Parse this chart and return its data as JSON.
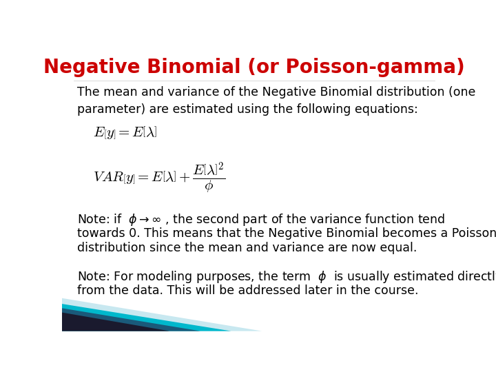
{
  "title": "Negative Binomial (or Poisson-gamma)",
  "title_color": "#CC0000",
  "title_fontsize": 20,
  "title_fontweight": "bold",
  "bg_color": "#FFFFFF",
  "body_text_1": "The mean and variance of the Negative Binomial distribution (one\nparameter) are estimated using the following equations:",
  "body_fontsize": 12.5,
  "eq1": "$E\\left[y\\right]= E\\left[\\lambda\\right]$",
  "eq2": "$VAR\\left[y\\right]= E\\left[\\lambda\\right]+\\dfrac{E\\left[\\lambda\\right]^2}{\\phi}$",
  "eq_fontsize": 15,
  "note1_line1": "Note: if  $\\phi \\rightarrow \\infty$ , the second part of the variance function tend",
  "note1_line2": "towards 0. This means that the Negative Binomial becomes a Poisson",
  "note1_line3": "distribution since the mean and variance are now equal.",
  "note2_line1": "Note: For modeling purposes, the term  $\\phi$  is usually estimated directly",
  "note2_line2": "from the data. This will be addressed later in the course.",
  "tri1_color": "#1A1A2E",
  "tri2_color": "#1A5A7A",
  "tri3_color": "#00B8CC",
  "tri4_color": "#C8E8F0"
}
